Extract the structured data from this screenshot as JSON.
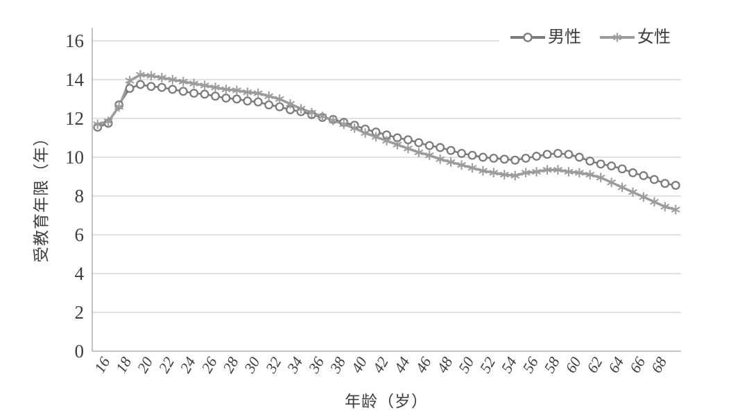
{
  "chart_data": {
    "type": "line",
    "title": "",
    "xlabel": "年龄（岁）",
    "ylabel": "受教育年限（年）",
    "ylim": [
      0,
      16
    ],
    "y_ticks": [
      0,
      2,
      4,
      6,
      8,
      10,
      12,
      14,
      16
    ],
    "x_ticks": [
      16,
      18,
      20,
      22,
      24,
      26,
      28,
      30,
      32,
      34,
      36,
      38,
      40,
      42,
      44,
      46,
      48,
      50,
      52,
      54,
      56,
      58,
      60,
      62,
      64,
      66,
      68
    ],
    "grid": "horizontal",
    "legend_position": "top-right",
    "categories": [
      15,
      16,
      17,
      18,
      19,
      20,
      21,
      22,
      23,
      24,
      25,
      26,
      27,
      28,
      29,
      30,
      31,
      32,
      33,
      34,
      35,
      36,
      37,
      38,
      39,
      40,
      41,
      42,
      43,
      44,
      45,
      46,
      47,
      48,
      49,
      50,
      51,
      52,
      53,
      54,
      55,
      56,
      57,
      58,
      59,
      60,
      61,
      62,
      63,
      64,
      65,
      66,
      67,
      68,
      69
    ],
    "series": [
      {
        "name": "男性",
        "marker": "circle",
        "color": "#7b7b7b",
        "line_width": 2.6,
        "values": [
          11.55,
          11.75,
          12.7,
          13.55,
          13.75,
          13.65,
          13.6,
          13.5,
          13.4,
          13.3,
          13.25,
          13.15,
          13.05,
          13.0,
          12.9,
          12.85,
          12.7,
          12.6,
          12.45,
          12.35,
          12.2,
          12.05,
          11.95,
          11.8,
          11.65,
          11.45,
          11.3,
          11.15,
          11.0,
          10.9,
          10.75,
          10.6,
          10.5,
          10.35,
          10.2,
          10.1,
          10.0,
          9.95,
          9.9,
          9.85,
          9.95,
          10.05,
          10.15,
          10.2,
          10.15,
          10.0,
          9.8,
          9.65,
          9.55,
          9.4,
          9.2,
          9.05,
          8.85,
          8.65,
          8.55
        ]
      },
      {
        "name": "女性",
        "marker": "asterisk",
        "color": "#9c9c9c",
        "line_width": 3.6,
        "values": [
          11.7,
          11.85,
          12.6,
          13.95,
          14.25,
          14.2,
          14.1,
          14.0,
          13.9,
          13.8,
          13.7,
          13.6,
          13.5,
          13.45,
          13.35,
          13.3,
          13.15,
          13.0,
          12.75,
          12.5,
          12.3,
          12.1,
          11.9,
          11.7,
          11.5,
          11.25,
          11.05,
          10.85,
          10.65,
          10.45,
          10.25,
          10.1,
          9.9,
          9.75,
          9.6,
          9.45,
          9.3,
          9.2,
          9.1,
          9.05,
          9.2,
          9.25,
          9.35,
          9.35,
          9.25,
          9.2,
          9.1,
          8.95,
          8.7,
          8.45,
          8.2,
          7.95,
          7.7,
          7.45,
          7.3
        ]
      }
    ],
    "colors": {
      "gridline": "#d9d9d9",
      "axis_line": "#b3b3b3",
      "text": "#3d3d3d",
      "background": "#ffffff"
    }
  }
}
